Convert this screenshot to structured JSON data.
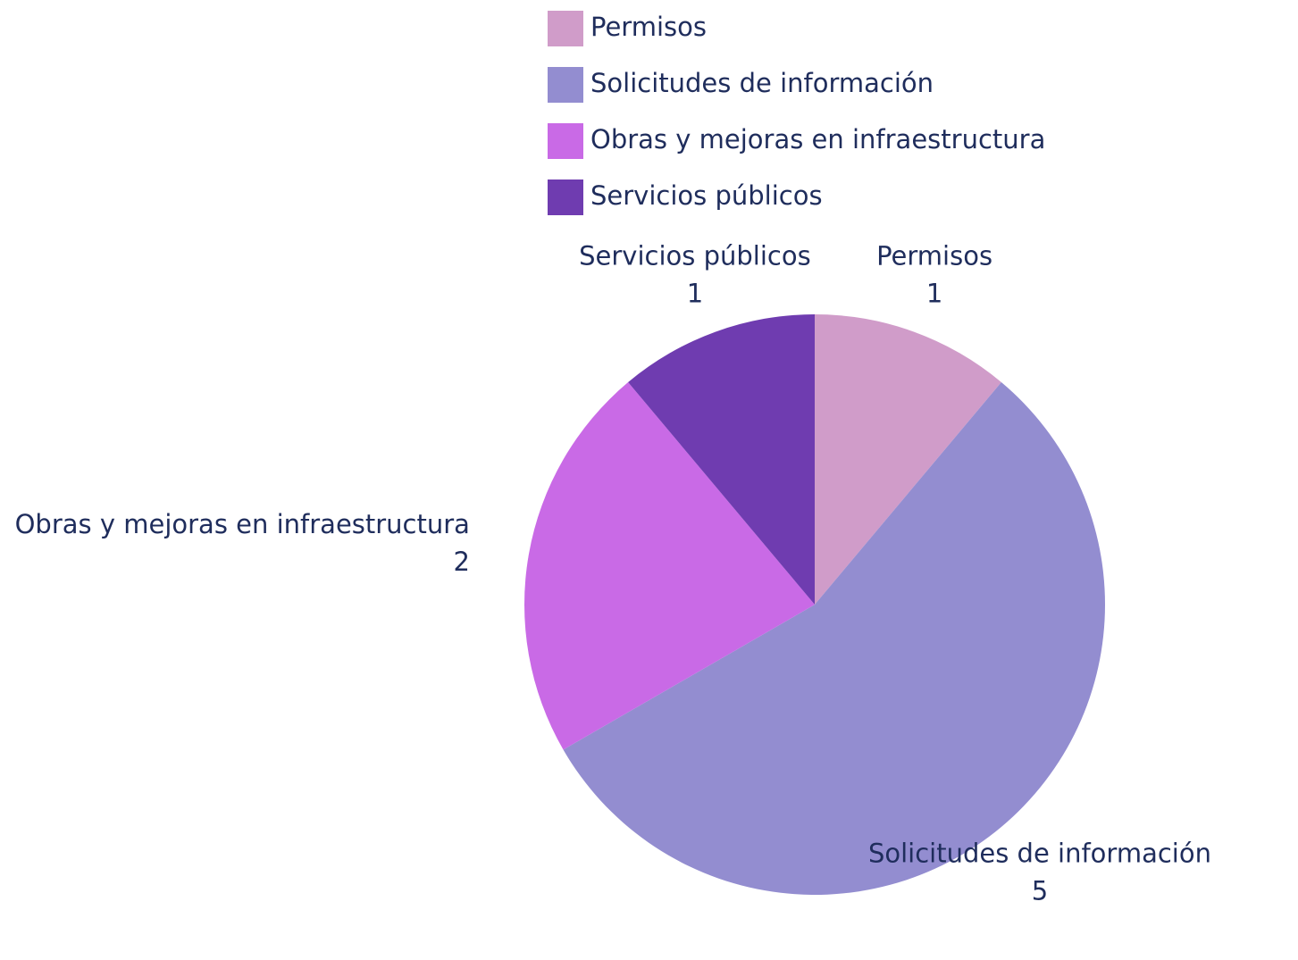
{
  "chart_data": {
    "type": "pie",
    "categories": [
      "Permisos",
      "Solicitudes de información",
      "Obras y mejoras en infraestructura",
      "Servicios públicos"
    ],
    "values": [
      1,
      5,
      2,
      1
    ],
    "colors": [
      "#d09cc9",
      "#938dd0",
      "#c96ae6",
      "#6f3cb0"
    ],
    "legend": "top"
  }
}
